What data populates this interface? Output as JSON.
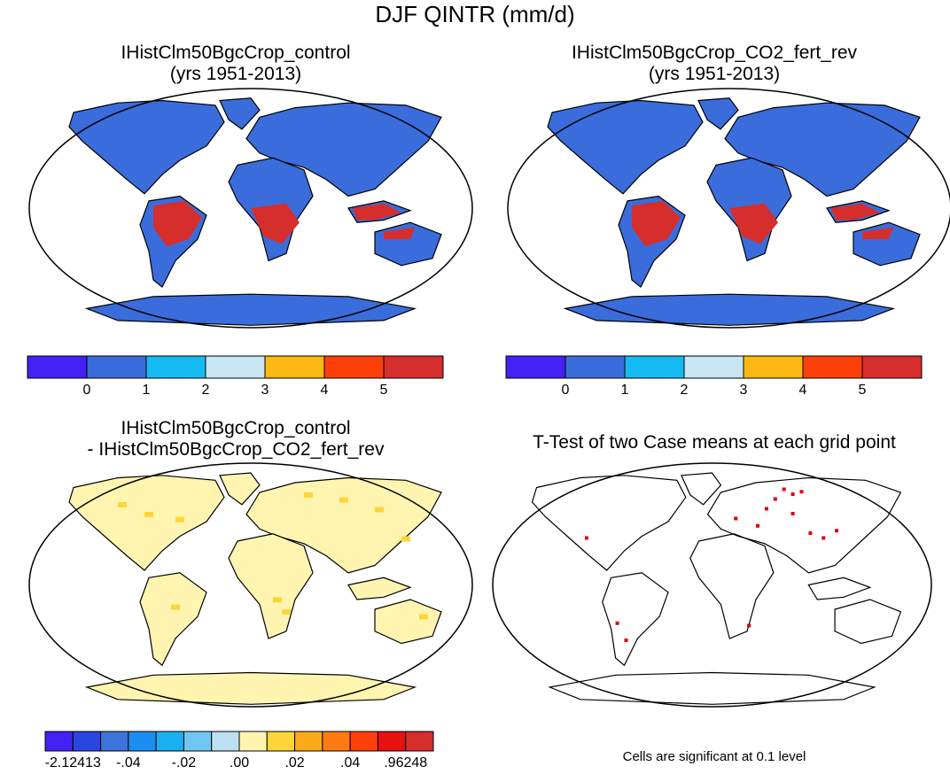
{
  "figure": {
    "title": "DJF QINTR (mm/d)",
    "footnote": "Cells are significant at 0.1 level"
  },
  "panels": [
    {
      "id": "p1",
      "title_line1": "IHistClm50BgcCrop_control",
      "title_line2": "(yrs 1951-2013)",
      "kind": "field"
    },
    {
      "id": "p2",
      "title_line1": "IHistClm50BgcCrop_CO2_fert_rev",
      "title_line2": "(yrs 1951-2013)",
      "kind": "field"
    },
    {
      "id": "p3",
      "title_line1": "IHistClm50BgcCrop_control",
      "title_line2": "- IHistClm50BgcCrop_CO2_fert_rev",
      "kind": "difference"
    },
    {
      "id": "p4",
      "title_line1": "T-Test of two Case means at each grid point",
      "title_line2": "",
      "kind": "significance"
    }
  ],
  "colorbars": {
    "field": {
      "colors": [
        "#4321f5",
        "#3a6ddb",
        "#16baf3",
        "#c8e6f4",
        "#fdb813",
        "#ff3f0a",
        "#d62d2d"
      ],
      "labels": [
        "0",
        "1",
        "2",
        "3",
        "4",
        "5"
      ]
    },
    "difference": {
      "colors": [
        "#4321f5",
        "#2a45e0",
        "#3d74dc",
        "#1a8ef2",
        "#19b0f2",
        "#6fc7f1",
        "#bcdff2",
        "#fff5b0",
        "#fdd53a",
        "#fbaa1a",
        "#ff7a12",
        "#ff3f0a",
        "#e81010",
        "#d62d2d"
      ],
      "labels": [
        "-2.12413",
        "-.04",
        "-.02",
        ".00",
        ".02",
        ".04",
        ".96248"
      ]
    }
  },
  "colors": {
    "ocean": "#ffffff",
    "land_low": "#3a6ddb",
    "land_high": "#d62d2d",
    "diff_land": "#fff5b0",
    "significant": "#e00000"
  }
}
